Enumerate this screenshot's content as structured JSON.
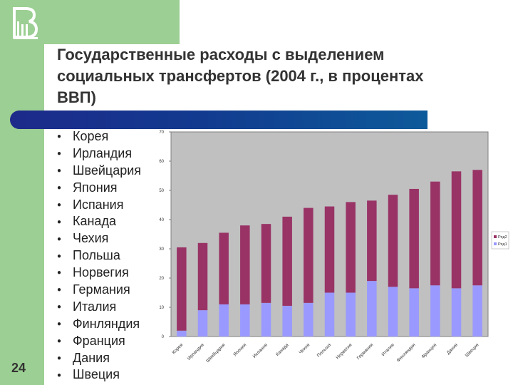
{
  "slide": {
    "title": "Государственные расходы с выделением социальных трансфертов (2004 г., в процентах ВВП)",
    "page_number": "24",
    "bullet_char": "l",
    "list": [
      "Корея",
      "Ирландия",
      "Швейцария",
      "Япония",
      "Испания",
      "Канада",
      "Чехия",
      "Польша",
      "Норвегия",
      "Германия",
      "Италия",
      "Финляндия",
      "Франция",
      "Дания",
      "Швеция"
    ]
  },
  "chart_data": {
    "type": "bar",
    "stacked": true,
    "categories": [
      "Корея",
      "Ирландия",
      "Швейцария",
      "Япония",
      "Испания",
      "Канада",
      "Чехия",
      "Польша",
      "Норвегия",
      "Германия",
      "Италия",
      "Финляндия",
      "Франция",
      "Дания",
      "Швеция"
    ],
    "series": [
      {
        "name": "Ряд1",
        "color": "#9999ff",
        "values": [
          2,
          9,
          11,
          11,
          11.5,
          10.5,
          11.5,
          15,
          15,
          19,
          17,
          16.5,
          17.5,
          16.5,
          17.5
        ]
      },
      {
        "name": "Ряд2",
        "color": "#993366",
        "values": [
          28.5,
          23,
          24.5,
          27,
          27,
          30.5,
          32.5,
          29.5,
          31,
          27.5,
          31.5,
          34,
          35.5,
          40,
          39.5
        ]
      }
    ],
    "ylim": [
      0,
      70
    ],
    "yticks": [
      "0",
      "10",
      "20",
      "30",
      "40",
      "50",
      "60",
      "70"
    ],
    "legend_position": "right",
    "grid": false
  }
}
